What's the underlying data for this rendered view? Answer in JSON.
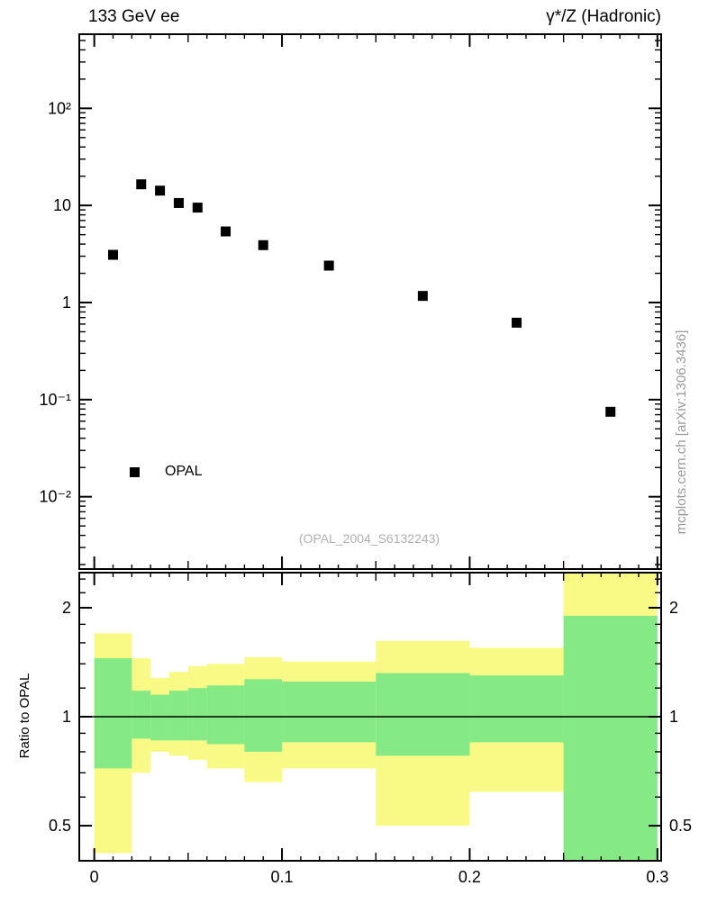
{
  "attribution": "mcplots.cern.ch [arXiv:1306.3436]",
  "colors": {
    "band_yellow": "#f9f985",
    "band_green": "#85e985",
    "marker": "#000000",
    "axis": "#000000",
    "watermark": "#b0b0b0",
    "attribution": "#999999"
  },
  "chart_data": [
    {
      "type": "scatter",
      "panel": "main",
      "title_left": "133 GeV ee",
      "title_right": "γ*/Z (Hadronic)",
      "annotation": "(OPAL_2004_S6132243)",
      "xscale": "linear",
      "yscale": "log",
      "xlim": [
        -0.008,
        0.302
      ],
      "ylim": [
        0.0018,
        580
      ],
      "grid": false,
      "xticks": [
        {
          "v": 0,
          "label": "0"
        },
        {
          "v": 0.1,
          "label": "0.1"
        },
        {
          "v": 0.2,
          "label": "0.2"
        },
        {
          "v": 0.3,
          "label": "0.3"
        }
      ],
      "yticks": [
        {
          "v": 100,
          "label": "10²"
        },
        {
          "v": 10,
          "label": "10"
        },
        {
          "v": 1,
          "label": "1"
        },
        {
          "v": 0.1,
          "label": "10⁻¹"
        },
        {
          "v": 0.01,
          "label": "10⁻²"
        }
      ],
      "legend_position": "lower-left",
      "series": [
        {
          "name": "OPAL",
          "marker": "filled-square",
          "x": [
            0.01,
            0.025,
            0.035,
            0.045,
            0.055,
            0.07,
            0.09,
            0.125,
            0.175,
            0.225,
            0.275
          ],
          "y": [
            3.1,
            16.5,
            14.2,
            10.6,
            9.5,
            5.4,
            3.9,
            2.4,
            1.17,
            0.62,
            0.075
          ]
        }
      ]
    },
    {
      "type": "ratio-bands",
      "panel": "ratio",
      "ylabel": "Ratio to OPAL",
      "yscale": "log",
      "xlim": [
        -0.008,
        0.302
      ],
      "ylim": [
        0.4,
        2.5
      ],
      "reference_line": 1,
      "xticks": [
        {
          "v": 0,
          "label": "0"
        },
        {
          "v": 0.1,
          "label": "0.1"
        },
        {
          "v": 0.2,
          "label": "0.2"
        },
        {
          "v": 0.3,
          "label": "0.3"
        }
      ],
      "yticks": [
        {
          "v": 0.5,
          "label": "0.5"
        },
        {
          "v": 1,
          "label": "1"
        },
        {
          "v": 2,
          "label": "2"
        }
      ],
      "yminor_ticks": [
        0.4,
        0.6,
        0.7,
        0.8,
        0.9,
        1.2,
        1.4,
        1.6,
        1.8,
        2.2,
        2.4
      ],
      "bins": [
        {
          "x": [
            0,
            0.02
          ],
          "yellow": [
            0.42,
            1.7
          ],
          "green": [
            0.72,
            1.45
          ]
        },
        {
          "x": [
            0.02,
            0.03
          ],
          "yellow": [
            0.7,
            1.45
          ],
          "green": [
            0.87,
            1.18
          ]
        },
        {
          "x": [
            0.03,
            0.04
          ],
          "yellow": [
            0.8,
            1.28
          ],
          "green": [
            0.86,
            1.15
          ]
        },
        {
          "x": [
            0.04,
            0.05
          ],
          "yellow": [
            0.78,
            1.33
          ],
          "green": [
            0.86,
            1.18
          ]
        },
        {
          "x": [
            0.05,
            0.06
          ],
          "yellow": [
            0.76,
            1.38
          ],
          "green": [
            0.86,
            1.2
          ]
        },
        {
          "x": [
            0.06,
            0.08
          ],
          "yellow": [
            0.72,
            1.4
          ],
          "green": [
            0.84,
            1.22
          ]
        },
        {
          "x": [
            0.08,
            0.1
          ],
          "yellow": [
            0.66,
            1.46
          ],
          "green": [
            0.8,
            1.27
          ]
        },
        {
          "x": [
            0.1,
            0.15
          ],
          "yellow": [
            0.72,
            1.42
          ],
          "green": [
            0.85,
            1.25
          ]
        },
        {
          "x": [
            0.15,
            0.2
          ],
          "yellow": [
            0.5,
            1.62
          ],
          "green": [
            0.78,
            1.32
          ]
        },
        {
          "x": [
            0.2,
            0.25
          ],
          "yellow": [
            0.62,
            1.55
          ],
          "green": [
            0.85,
            1.3
          ]
        },
        {
          "x": [
            0.25,
            0.3
          ],
          "yellow": [
            0.38,
            2.6
          ],
          "green": [
            0.38,
            1.9
          ]
        }
      ]
    }
  ]
}
